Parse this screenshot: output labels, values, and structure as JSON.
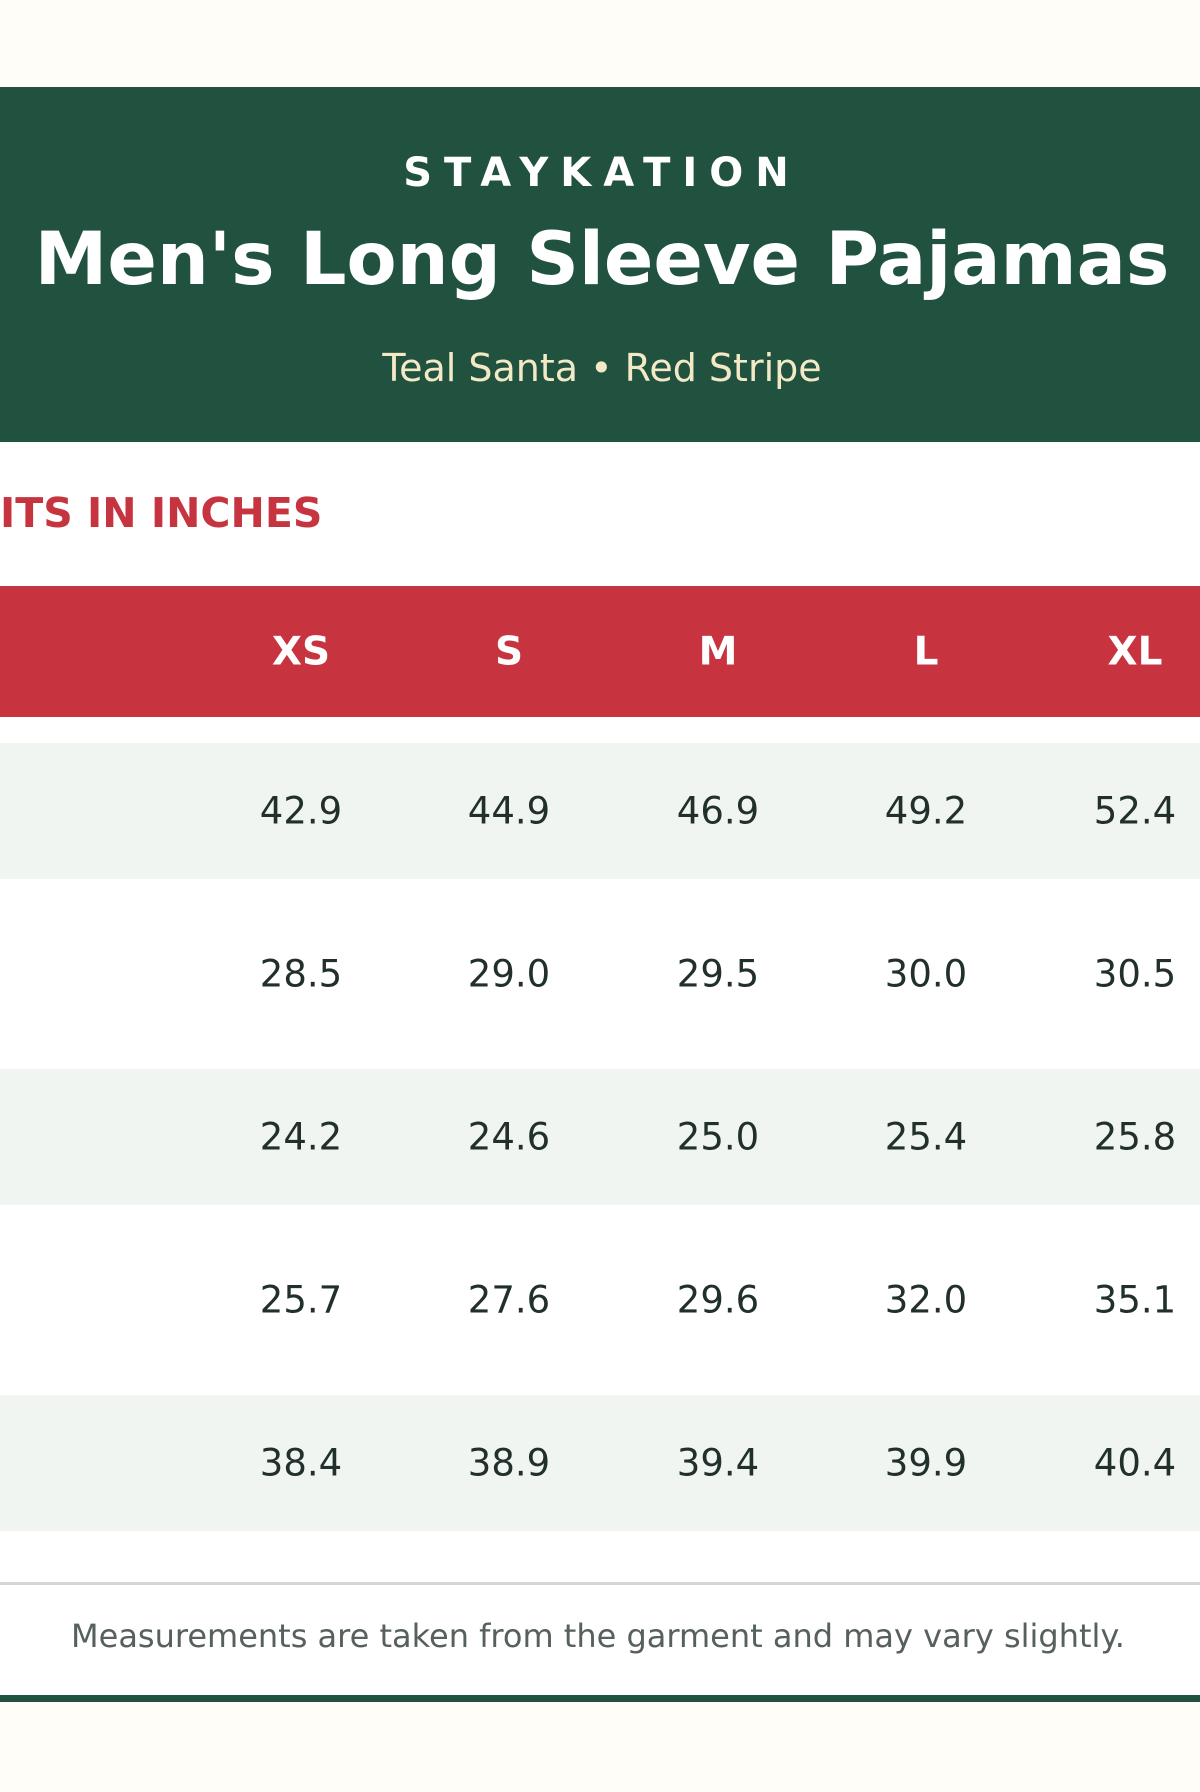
{
  "header": {
    "brand": "STAYKATION",
    "title": "Men's Long Sleeve Pajamas",
    "subtitle": "Teal Santa • Red Stripe"
  },
  "section_title": "ITS IN INCHES",
  "table": {
    "headers": [
      "XS",
      "S",
      "M",
      "L",
      "XL"
    ],
    "rows": [
      [
        "42.9",
        "44.9",
        "46.9",
        "49.2",
        "52.4"
      ],
      [
        "28.5",
        "29.0",
        "29.5",
        "30.0",
        "30.5"
      ],
      [
        "24.2",
        "24.6",
        "25.0",
        "25.4",
        "25.8"
      ],
      [
        "25.7",
        "27.6",
        "29.6",
        "32.0",
        "35.1"
      ],
      [
        "38.4",
        "38.9",
        "39.4",
        "39.9",
        "40.4"
      ]
    ]
  },
  "footer_note": "Measurements are taken from the garment and may vary slightly."
}
